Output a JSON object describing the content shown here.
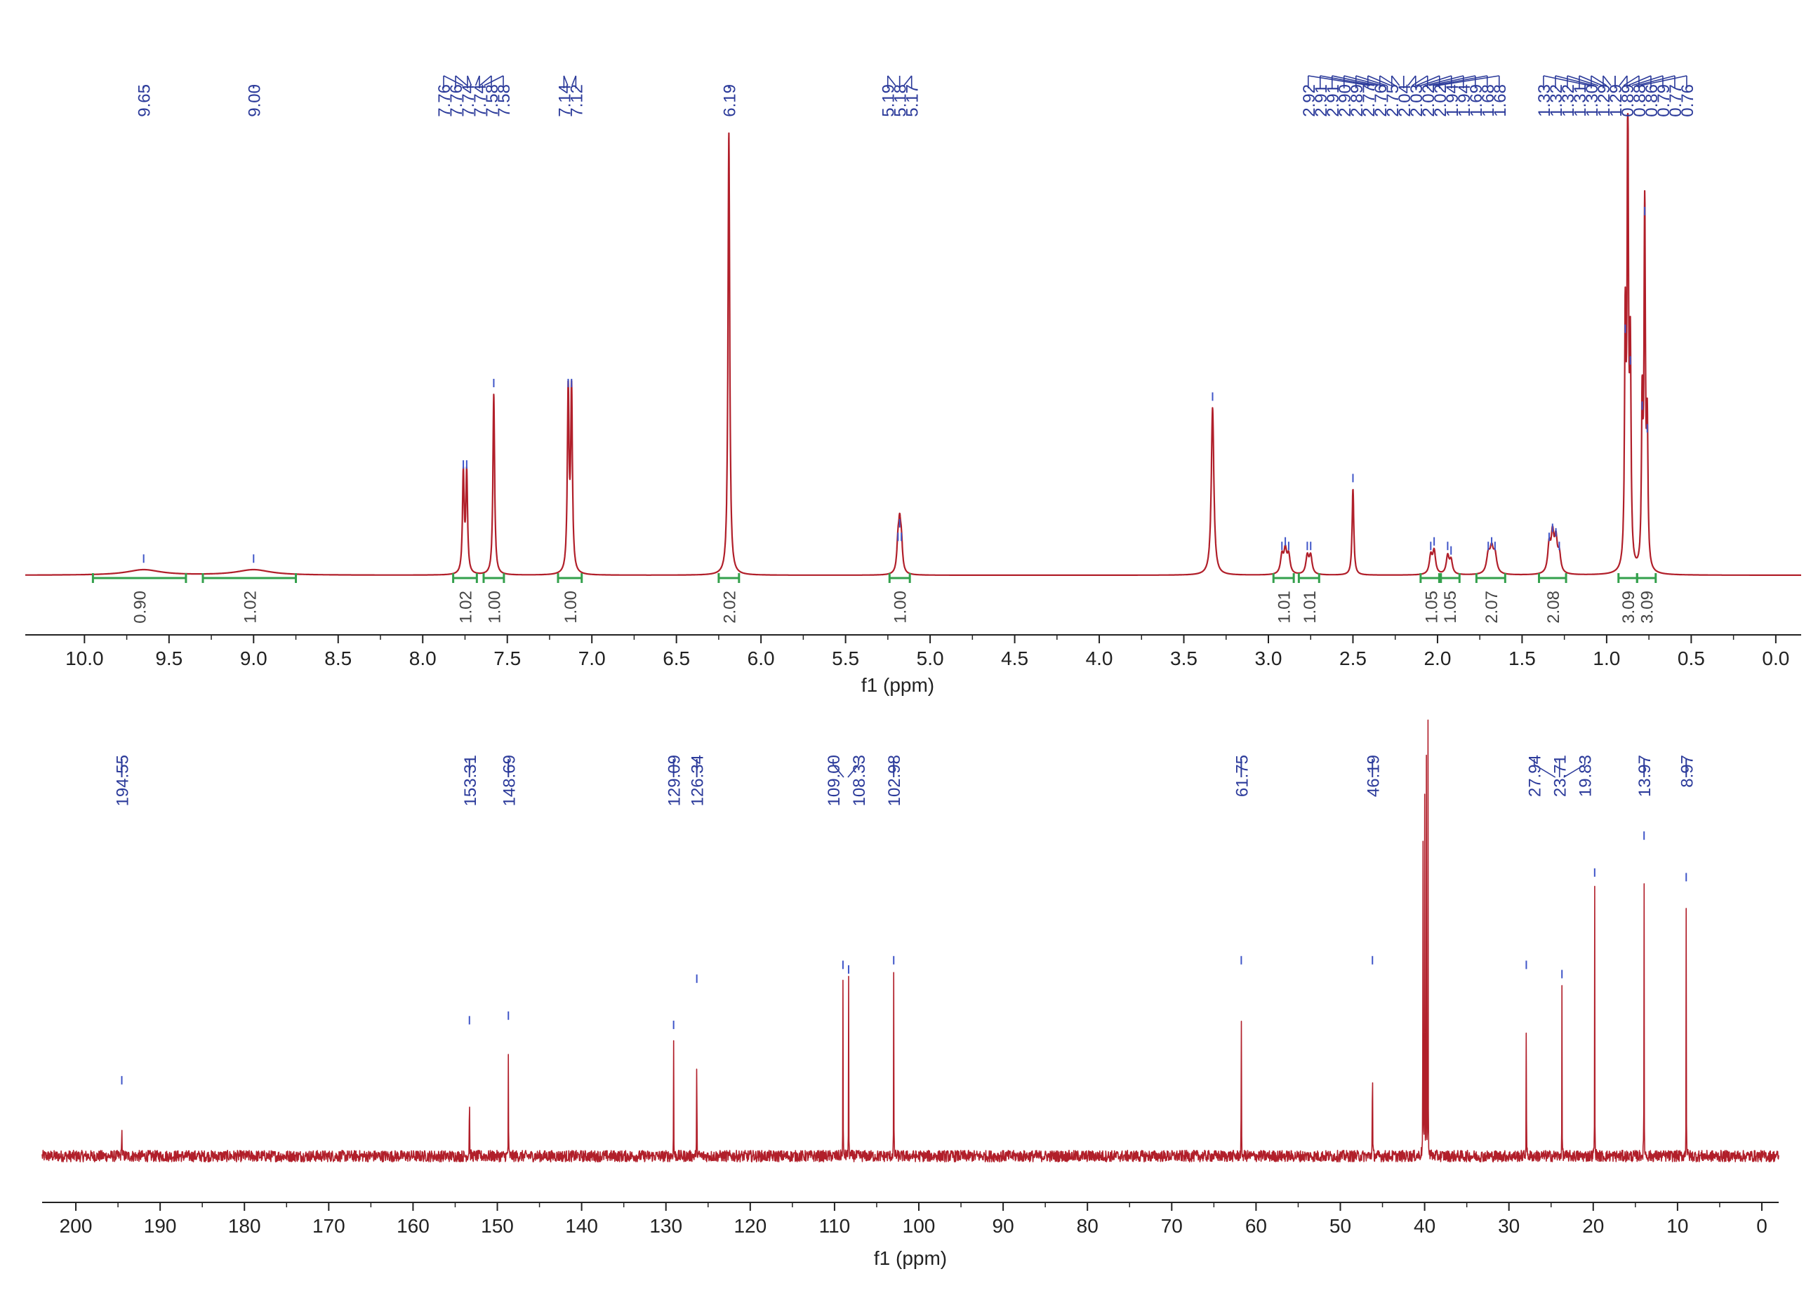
{
  "colors": {
    "spectrum": "#b11f2a",
    "peak_label": "#2b3a9a",
    "peak_marker": "#3f55c8",
    "integral": "#33a04c",
    "integral_text": "#444444",
    "axis": "#222222"
  },
  "chart_data": [
    {
      "type": "line",
      "spectrum": "1H NMR",
      "xlabel": "f1 (ppm)",
      "ylabel": "",
      "xlim": [
        10.35,
        -0.15
      ],
      "x_reversed": true,
      "x_ticks": [
        "10.0",
        "9.5",
        "9.0",
        "8.5",
        "8.0",
        "7.5",
        "7.0",
        "6.5",
        "6.0",
        "5.5",
        "5.0",
        "4.5",
        "4.0",
        "3.5",
        "3.0",
        "2.5",
        "2.0",
        "1.5",
        "1.0",
        "0.5",
        "0.0"
      ],
      "grid": false,
      "peaks": [
        {
          "ppm": 9.65,
          "height": 0.012,
          "width": 0.12
        },
        {
          "ppm": 9.0,
          "height": 0.012,
          "width": 0.12
        },
        {
          "ppm": 7.76,
          "height": 0.22,
          "width": 0.006
        },
        {
          "ppm": 7.74,
          "height": 0.22,
          "width": 0.006
        },
        {
          "ppm": 7.58,
          "height": 0.4,
          "width": 0.006
        },
        {
          "ppm": 7.14,
          "height": 0.4,
          "width": 0.006
        },
        {
          "ppm": 7.12,
          "height": 0.4,
          "width": 0.006
        },
        {
          "ppm": 6.19,
          "height": 0.98,
          "width": 0.006
        },
        {
          "ppm": 5.19,
          "height": 0.06,
          "width": 0.008
        },
        {
          "ppm": 5.18,
          "height": 0.09,
          "width": 0.008
        },
        {
          "ppm": 5.17,
          "height": 0.06,
          "width": 0.008
        },
        {
          "ppm": 3.33,
          "height": 0.37,
          "width": 0.009
        },
        {
          "ppm": 2.92,
          "height": 0.04,
          "width": 0.01
        },
        {
          "ppm": 2.9,
          "height": 0.05,
          "width": 0.01
        },
        {
          "ppm": 2.88,
          "height": 0.04,
          "width": 0.01
        },
        {
          "ppm": 2.77,
          "height": 0.04,
          "width": 0.01
        },
        {
          "ppm": 2.75,
          "height": 0.04,
          "width": 0.01
        },
        {
          "ppm": 2.5,
          "height": 0.19,
          "width": 0.006
        },
        {
          "ppm": 2.04,
          "height": 0.04,
          "width": 0.01
        },
        {
          "ppm": 2.02,
          "height": 0.05,
          "width": 0.01
        },
        {
          "ppm": 1.94,
          "height": 0.04,
          "width": 0.01
        },
        {
          "ppm": 1.92,
          "height": 0.03,
          "width": 0.01
        },
        {
          "ppm": 1.7,
          "height": 0.04,
          "width": 0.012
        },
        {
          "ppm": 1.68,
          "height": 0.05,
          "width": 0.012
        },
        {
          "ppm": 1.66,
          "height": 0.04,
          "width": 0.012
        },
        {
          "ppm": 1.34,
          "height": 0.06,
          "width": 0.01
        },
        {
          "ppm": 1.32,
          "height": 0.08,
          "width": 0.01
        },
        {
          "ppm": 1.3,
          "height": 0.07,
          "width": 0.01
        },
        {
          "ppm": 1.28,
          "height": 0.04,
          "width": 0.01
        },
        {
          "ppm": 0.89,
          "height": 0.52,
          "width": 0.005
        },
        {
          "ppm": 0.875,
          "height": 1.0,
          "width": 0.005
        },
        {
          "ppm": 0.86,
          "height": 0.45,
          "width": 0.005
        },
        {
          "ppm": 0.79,
          "height": 0.35,
          "width": 0.005
        },
        {
          "ppm": 0.775,
          "height": 0.78,
          "width": 0.005
        },
        {
          "ppm": 0.76,
          "height": 0.3,
          "width": 0.005
        }
      ],
      "peak_groups": [
        {
          "anchor": 9.65,
          "labels": [
            "9.65"
          ]
        },
        {
          "anchor": 9.0,
          "labels": [
            "9.00"
          ]
        },
        {
          "anchor": 7.7,
          "labels": [
            "7.76",
            "7.76",
            "7.74",
            "7.74",
            "7.58",
            "7.58"
          ]
        },
        {
          "anchor": 7.13,
          "labels": [
            "7.14",
            "7.12"
          ]
        },
        {
          "anchor": 6.19,
          "labels": [
            "6.19"
          ]
        },
        {
          "anchor": 5.18,
          "labels": [
            "5.19",
            "5.18",
            "5.17"
          ]
        },
        {
          "anchor": 2.2,
          "labels": [
            "2.92",
            "2.91",
            "2.91",
            "2.90",
            "2.89",
            "2.77",
            "2.76",
            "2.75",
            "2.04",
            "2.03",
            "2.02",
            "2.02",
            "1.94",
            "1.94",
            "1.69",
            "1.68",
            "1.68"
          ]
        },
        {
          "anchor": 0.95,
          "labels": [
            "1.33",
            "1.32",
            "1.32",
            "1.31",
            "1.30",
            "1.29",
            "1.29",
            "0.89",
            "0.88",
            "0.86",
            "0.79",
            "0.77",
            "0.76"
          ]
        }
      ],
      "integrals": [
        {
          "from": 9.95,
          "to": 9.4,
          "value": "0.90"
        },
        {
          "from": 9.3,
          "to": 8.75,
          "value": "1.02"
        },
        {
          "from": 7.82,
          "to": 7.68,
          "value": "1.02"
        },
        {
          "from": 7.64,
          "to": 7.52,
          "value": "1.00"
        },
        {
          "from": 7.2,
          "to": 7.06,
          "value": "1.00"
        },
        {
          "from": 6.25,
          "to": 6.13,
          "value": "2.02"
        },
        {
          "from": 5.24,
          "to": 5.12,
          "value": "1.00"
        },
        {
          "from": 2.97,
          "to": 2.85,
          "value": "1.01"
        },
        {
          "from": 2.82,
          "to": 2.7,
          "value": "1.01"
        },
        {
          "from": 2.1,
          "to": 1.98,
          "value": "1.05"
        },
        {
          "from": 1.99,
          "to": 1.87,
          "value": "1.05"
        },
        {
          "from": 1.77,
          "to": 1.6,
          "value": "2.07"
        },
        {
          "from": 1.4,
          "to": 1.24,
          "value": "2.08"
        },
        {
          "from": 0.93,
          "to": 0.82,
          "value": "3.09"
        },
        {
          "from": 0.82,
          "to": 0.71,
          "value": "3.09"
        }
      ]
    },
    {
      "type": "line",
      "spectrum": "13C NMR",
      "xlabel": "f1 (ppm)",
      "ylabel": "",
      "xlim": [
        204,
        -2
      ],
      "x_reversed": true,
      "x_ticks": [
        "200",
        "190",
        "180",
        "170",
        "160",
        "150",
        "140",
        "130",
        "120",
        "110",
        "100",
        "90",
        "80",
        "70",
        "60",
        "50",
        "40",
        "30",
        "20",
        "10",
        "0"
      ],
      "grid": false,
      "peaks": [
        {
          "ppm": 194.55,
          "height": 0.14
        },
        {
          "ppm": 153.31,
          "height": 0.27
        },
        {
          "ppm": 148.69,
          "height": 0.28
        },
        {
          "ppm": 129.09,
          "height": 0.26
        },
        {
          "ppm": 126.34,
          "height": 0.36
        },
        {
          "ppm": 109.0,
          "height": 0.39
        },
        {
          "ppm": 108.33,
          "height": 0.38
        },
        {
          "ppm": 102.98,
          "height": 0.4
        },
        {
          "ppm": 61.75,
          "height": 0.4
        },
        {
          "ppm": 46.19,
          "height": 0.4
        },
        {
          "ppm": 40.2,
          "height": 1.0
        },
        {
          "ppm": 40.0,
          "height": 1.0
        },
        {
          "ppm": 39.8,
          "height": 1.0
        },
        {
          "ppm": 39.6,
          "height": 1.0
        },
        {
          "ppm": 27.94,
          "height": 0.39
        },
        {
          "ppm": 23.71,
          "height": 0.37
        },
        {
          "ppm": 19.83,
          "height": 0.59
        },
        {
          "ppm": 13.97,
          "height": 0.67
        },
        {
          "ppm": 8.97,
          "height": 0.58
        }
      ],
      "peak_groups": [
        {
          "anchor": 194.55,
          "labels": [
            "194.55"
          ]
        },
        {
          "anchor": 153.31,
          "labels": [
            "153.31"
          ]
        },
        {
          "anchor": 148.69,
          "labels": [
            "148.69"
          ]
        },
        {
          "anchor": 129.09,
          "labels": [
            "129.09"
          ]
        },
        {
          "anchor": 126.34,
          "labels": [
            "126.34"
          ]
        },
        {
          "anchor": 108.665,
          "labels": [
            "109.00",
            "108.33"
          ]
        },
        {
          "anchor": 102.98,
          "labels": [
            "102.98"
          ]
        },
        {
          "anchor": 61.75,
          "labels": [
            "61.75"
          ]
        },
        {
          "anchor": 46.19,
          "labels": [
            "46.19"
          ]
        },
        {
          "anchor": 24.0,
          "labels": [
            "27.94",
            "23.71",
            "19.83"
          ]
        },
        {
          "anchor": 13.97,
          "labels": [
            "13.97"
          ]
        },
        {
          "anchor": 8.97,
          "labels": [
            "8.97"
          ]
        }
      ],
      "integrals": []
    }
  ]
}
